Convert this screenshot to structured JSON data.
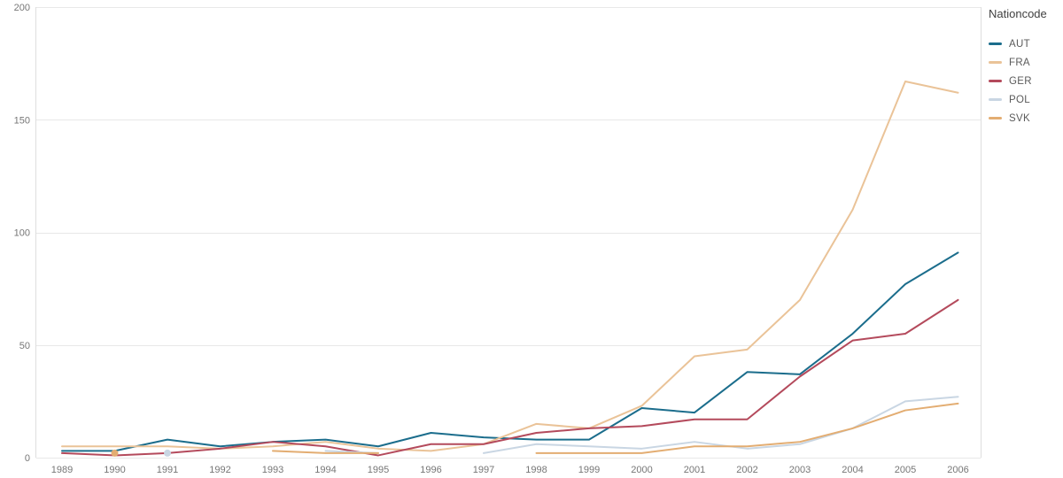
{
  "legend": {
    "title": "Nationcode",
    "items": [
      {
        "label": "AUT",
        "color": "#1b6d8c"
      },
      {
        "label": "FRA",
        "color": "#eac398"
      },
      {
        "label": "GER",
        "color": "#b44a5c"
      },
      {
        "label": "POL",
        "color": "#c9d6e3"
      },
      {
        "label": "SVK",
        "color": "#e3ad72"
      }
    ]
  },
  "axes": {
    "y_tick_labels": [
      "0",
      "50",
      "100",
      "150",
      "200"
    ],
    "x_tick_labels": [
      "1989",
      "1990",
      "1991",
      "1992",
      "1993",
      "1994",
      "1995",
      "1996",
      "1997",
      "1998",
      "1999",
      "2000",
      "2001",
      "2002",
      "2003",
      "2004",
      "2005",
      "2006"
    ],
    "tick_color": "#767676",
    "grid_color": "#e8e8e8",
    "border_color": "#dedede"
  },
  "chart_data": {
    "type": "line",
    "x": [
      1989,
      1990,
      1991,
      1992,
      1993,
      1994,
      1995,
      1996,
      1997,
      1998,
      1999,
      2000,
      2001,
      2002,
      2003,
      2004,
      2005,
      2006
    ],
    "series": [
      {
        "name": "AUT",
        "color": "#1b6d8c",
        "values": [
          3,
          3,
          8,
          5,
          7,
          8,
          5,
          11,
          9,
          8,
          8,
          22,
          20,
          38,
          37,
          55,
          77,
          91
        ]
      },
      {
        "name": "FRA",
        "color": "#eac398",
        "values": [
          5,
          5,
          5,
          4,
          5,
          7,
          4,
          3,
          6,
          15,
          13,
          23,
          45,
          48,
          70,
          110,
          167,
          162
        ]
      },
      {
        "name": "GER",
        "color": "#b44a5c",
        "values": [
          2,
          1,
          2,
          4,
          7,
          5,
          1,
          6,
          6,
          11,
          13,
          14,
          17,
          17,
          36,
          52,
          55,
          70
        ]
      },
      {
        "name": "POL",
        "color": "#c9d6e3",
        "values": [
          null,
          null,
          2,
          null,
          null,
          3,
          2,
          null,
          2,
          6,
          5,
          4,
          7,
          4,
          6,
          13,
          25,
          27
        ]
      },
      {
        "name": "SVK",
        "color": "#e3ad72",
        "values": [
          null,
          2,
          null,
          null,
          3,
          2,
          2,
          null,
          null,
          2,
          2,
          2,
          5,
          5,
          7,
          13,
          21,
          24
        ]
      }
    ],
    "title": "",
    "xlabel": "",
    "ylabel": "",
    "ylim": [
      0,
      200
    ],
    "yticks": [
      0,
      50,
      100,
      150,
      200
    ],
    "grid": "horizontal",
    "legend_title": "Nationcode",
    "legend_position": "right"
  }
}
